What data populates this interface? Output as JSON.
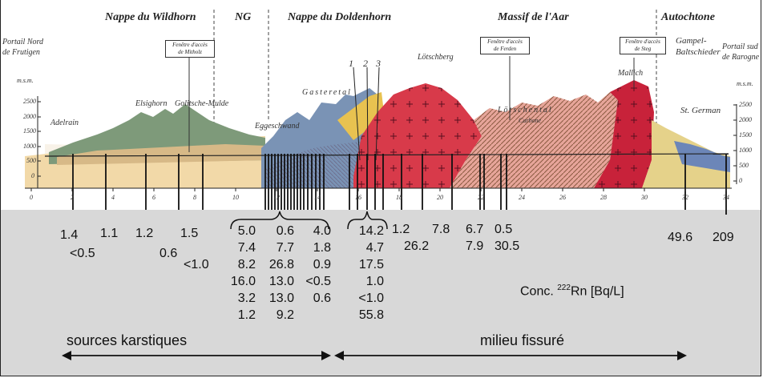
{
  "section": {
    "units": [
      "Nappe du Wildhorn",
      "NG",
      "Nappe du Doldenhorn",
      "Massif de l'Aar",
      "Autochtone"
    ],
    "portal_left": [
      "Portail Nord",
      "de Frutigen"
    ],
    "portal_right": [
      "Portail sud",
      "de Rarogne"
    ],
    "msm": "m.s.m.",
    "elev_ticks_left": [
      "2500",
      "2000",
      "1500",
      "1000",
      "500",
      "0"
    ],
    "elev_ticks_right": [
      "2500",
      "2000",
      "1500",
      "1000",
      "500",
      "0"
    ],
    "windows": {
      "mitholz": [
        "Fenêtre d'accès",
        "de Mitholz"
      ],
      "ferden": [
        "Fenêtre d'accès",
        "de Ferden"
      ],
      "steg": [
        "Fenêtre d'accès",
        "de Steg"
      ]
    },
    "places": {
      "adelrain": "Adelrain",
      "elsighorn": "Elsighorn",
      "golitsche": "Golitsche-Mulde",
      "eggeschwand": "Eggeschwand",
      "gasteretal": "Gasteretal",
      "loetschberg": "Lötschberg",
      "loetschental": "Lötschental",
      "carbone": "Carbone",
      "mallich": "Mallich",
      "gampel": [
        "Gampel-",
        "Baltschieder"
      ],
      "stgerman": "St. German"
    },
    "fault_labels": [
      "1",
      "2",
      "3"
    ],
    "km_ticks": [
      "0",
      "2",
      "4",
      "6",
      "8",
      "10",
      "12",
      "14",
      "16",
      "18",
      "20",
      "22",
      "24",
      "26",
      "28",
      "30",
      "32",
      "34"
    ]
  },
  "measurements": {
    "g1": {
      "top": "1.4",
      "bottom": "<0.5"
    },
    "g2": {
      "top": "1.1"
    },
    "g3": {
      "top": "1.2"
    },
    "g4": {
      "top": "1.5",
      "mid": "0.6"
    },
    "g5": {
      "low": "<1.0"
    },
    "cluster_col1": [
      "5.0",
      "7.4",
      "8.2",
      "16.0",
      "3.2",
      "1.2"
    ],
    "cluster_col2": [
      "0.6",
      "7.7",
      "26.8",
      "13.0",
      "13.0",
      "9.2"
    ],
    "cluster_col3": [
      "4.0",
      "1.8",
      "0.9",
      "<0.5",
      "0.6"
    ],
    "cluster_b": [
      "14.2",
      "4.7",
      "17.5",
      "1.0",
      "<1.0",
      "55.8"
    ],
    "g6": {
      "top": "1.2",
      "bottom": "26.2"
    },
    "g7": {
      "top": "7.8"
    },
    "g8": {
      "top": "6.7",
      "bottom": "7.9"
    },
    "g9": {
      "top": "0.5",
      "bottom": "30.5"
    },
    "g10": "49.6",
    "g11": "209"
  },
  "legend": {
    "conc_prefix": "Conc. ",
    "conc_sup": "222",
    "conc_suffix": "Rn [Bq/L]",
    "left_label": "sources karstiques",
    "right_label": "milieu fissuré"
  }
}
